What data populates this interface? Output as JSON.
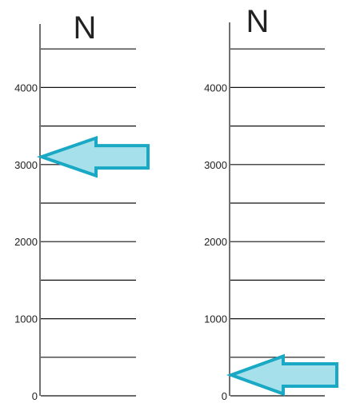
{
  "colors": {
    "line": "#111111",
    "text": "#222222",
    "arrow_fill": "#a6e0ea",
    "arrow_stroke": "#19a9c4"
  },
  "scales": [
    {
      "title": "N",
      "range": [
        0,
        4500
      ],
      "labeled_ticks": [
        "0",
        "1000",
        "2000",
        "3000",
        "4000"
      ],
      "rungs": [
        0,
        500,
        1000,
        1500,
        2000,
        2500,
        3000,
        3500,
        4000,
        4500
      ],
      "pointer": {
        "value": 3100,
        "direction": "left",
        "icon": "left-arrow-icon"
      }
    },
    {
      "title": "N",
      "range": [
        0,
        4500
      ],
      "labeled_ticks": [
        "0",
        "1000",
        "2000",
        "3000",
        "4000"
      ],
      "rungs": [
        0,
        500,
        1000,
        1500,
        2000,
        2500,
        3000,
        3500,
        4000,
        4500
      ],
      "pointer": {
        "value": 270,
        "direction": "left",
        "icon": "left-arrow-icon"
      }
    }
  ]
}
